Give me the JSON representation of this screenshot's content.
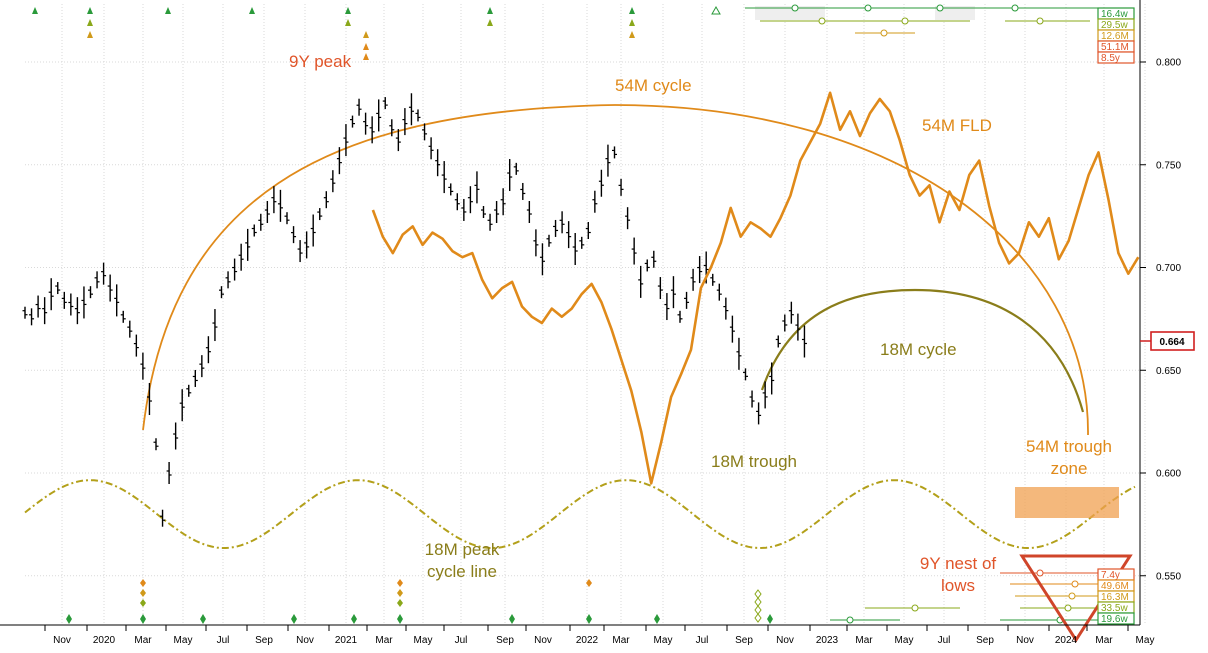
{
  "chart_data": {
    "type": "line",
    "title": "",
    "xlabel": "",
    "ylabel": "",
    "ylim": [
      0.52,
      0.825
    ],
    "x_ticks": [
      "Nov",
      "2020",
      "Mar",
      "May",
      "Jul",
      "Sep",
      "Nov",
      "2021",
      "Mar",
      "May",
      "Jul",
      "Sep",
      "Nov",
      "2022",
      "Mar",
      "May",
      "Jul",
      "Sep",
      "Nov",
      "2023",
      "Mar",
      "May",
      "Jul",
      "Sep",
      "Nov",
      "2024",
      "Mar",
      "May"
    ],
    "y_ticks": [
      "0.550",
      "0.600",
      "0.650",
      "0.700",
      "0.750",
      "0.800"
    ],
    "current_price": "0.664",
    "price_bars": [
      {
        "t": 0,
        "v": 0.678
      },
      {
        "t": 1,
        "v": 0.676
      },
      {
        "t": 2,
        "v": 0.681
      },
      {
        "t": 3,
        "v": 0.679
      },
      {
        "t": 4,
        "v": 0.687
      },
      {
        "t": 5,
        "v": 0.69
      },
      {
        "t": 6,
        "v": 0.684
      },
      {
        "t": 7,
        "v": 0.682
      },
      {
        "t": 8,
        "v": 0.679
      },
      {
        "t": 9,
        "v": 0.683
      },
      {
        "t": 10,
        "v": 0.688
      },
      {
        "t": 11,
        "v": 0.694
      },
      {
        "t": 12,
        "v": 0.697
      },
      {
        "t": 13,
        "v": 0.69
      },
      {
        "t": 14,
        "v": 0.684
      },
      {
        "t": 15,
        "v": 0.676
      },
      {
        "t": 16,
        "v": 0.67
      },
      {
        "t": 17,
        "v": 0.662
      },
      {
        "t": 18,
        "v": 0.652
      },
      {
        "t": 19,
        "v": 0.636
      },
      {
        "t": 20,
        "v": 0.614
      },
      {
        "t": 21,
        "v": 0.578
      },
      {
        "t": 22,
        "v": 0.6
      },
      {
        "t": 23,
        "v": 0.618
      },
      {
        "t": 24,
        "v": 0.633
      },
      {
        "t": 25,
        "v": 0.64
      },
      {
        "t": 26,
        "v": 0.646
      },
      {
        "t": 27,
        "v": 0.652
      },
      {
        "t": 28,
        "v": 0.66
      },
      {
        "t": 29,
        "v": 0.672
      },
      {
        "t": 30,
        "v": 0.688
      },
      {
        "t": 31,
        "v": 0.694
      },
      {
        "t": 32,
        "v": 0.699
      },
      {
        "t": 33,
        "v": 0.705
      },
      {
        "t": 34,
        "v": 0.711
      },
      {
        "t": 35,
        "v": 0.718
      },
      {
        "t": 36,
        "v": 0.722
      },
      {
        "t": 37,
        "v": 0.727
      },
      {
        "t": 38,
        "v": 0.733
      },
      {
        "t": 39,
        "v": 0.73
      },
      {
        "t": 40,
        "v": 0.724
      },
      {
        "t": 41,
        "v": 0.716
      },
      {
        "t": 42,
        "v": 0.708
      },
      {
        "t": 43,
        "v": 0.711
      },
      {
        "t": 44,
        "v": 0.718
      },
      {
        "t": 45,
        "v": 0.726
      },
      {
        "t": 46,
        "v": 0.733
      },
      {
        "t": 47,
        "v": 0.742
      },
      {
        "t": 48,
        "v": 0.752
      },
      {
        "t": 49,
        "v": 0.762
      },
      {
        "t": 50,
        "v": 0.771
      },
      {
        "t": 51,
        "v": 0.778
      },
      {
        "t": 52,
        "v": 0.77
      },
      {
        "t": 53,
        "v": 0.767
      },
      {
        "t": 54,
        "v": 0.774
      },
      {
        "t": 55,
        "v": 0.78
      },
      {
        "t": 56,
        "v": 0.768
      },
      {
        "t": 57,
        "v": 0.762
      },
      {
        "t": 58,
        "v": 0.771
      },
      {
        "t": 59,
        "v": 0.777
      },
      {
        "t": 60,
        "v": 0.774
      },
      {
        "t": 61,
        "v": 0.766
      },
      {
        "t": 62,
        "v": 0.758
      },
      {
        "t": 63,
        "v": 0.751
      },
      {
        "t": 64,
        "v": 0.744
      },
      {
        "t": 65,
        "v": 0.738
      },
      {
        "t": 66,
        "v": 0.732
      },
      {
        "t": 67,
        "v": 0.728
      },
      {
        "t": 68,
        "v": 0.733
      },
      {
        "t": 69,
        "v": 0.739
      },
      {
        "t": 70,
        "v": 0.727
      },
      {
        "t": 71,
        "v": 0.722
      },
      {
        "t": 72,
        "v": 0.727
      },
      {
        "t": 73,
        "v": 0.732
      },
      {
        "t": 74,
        "v": 0.745
      },
      {
        "t": 75,
        "v": 0.748
      },
      {
        "t": 76,
        "v": 0.737
      },
      {
        "t": 77,
        "v": 0.727
      },
      {
        "t": 78,
        "v": 0.712
      },
      {
        "t": 79,
        "v": 0.704
      },
      {
        "t": 80,
        "v": 0.713
      },
      {
        "t": 81,
        "v": 0.719
      },
      {
        "t": 82,
        "v": 0.722
      },
      {
        "t": 83,
        "v": 0.716
      },
      {
        "t": 84,
        "v": 0.709
      },
      {
        "t": 85,
        "v": 0.712
      },
      {
        "t": 86,
        "v": 0.718
      },
      {
        "t": 87,
        "v": 0.732
      },
      {
        "t": 88,
        "v": 0.741
      },
      {
        "t": 89,
        "v": 0.752
      },
      {
        "t": 90,
        "v": 0.756
      },
      {
        "t": 91,
        "v": 0.739
      },
      {
        "t": 92,
        "v": 0.724
      },
      {
        "t": 93,
        "v": 0.708
      },
      {
        "t": 94,
        "v": 0.693
      },
      {
        "t": 95,
        "v": 0.701
      },
      {
        "t": 96,
        "v": 0.704
      },
      {
        "t": 97,
        "v": 0.69
      },
      {
        "t": 98,
        "v": 0.681
      },
      {
        "t": 99,
        "v": 0.688
      },
      {
        "t": 100,
        "v": 0.676
      },
      {
        "t": 101,
        "v": 0.684
      },
      {
        "t": 102,
        "v": 0.694
      },
      {
        "t": 103,
        "v": 0.699
      },
      {
        "t": 104,
        "v": 0.7
      },
      {
        "t": 105,
        "v": 0.694
      },
      {
        "t": 106,
        "v": 0.688
      },
      {
        "t": 107,
        "v": 0.68
      },
      {
        "t": 108,
        "v": 0.67
      },
      {
        "t": 109,
        "v": 0.658
      },
      {
        "t": 110,
        "v": 0.648
      },
      {
        "t": 111,
        "v": 0.636
      },
      {
        "t": 112,
        "v": 0.629
      },
      {
        "t": 113,
        "v": 0.638
      },
      {
        "t": 114,
        "v": 0.646
      },
      {
        "t": 115,
        "v": 0.664
      },
      {
        "t": 116,
        "v": 0.673
      },
      {
        "t": 117,
        "v": 0.678
      },
      {
        "t": 118,
        "v": 0.671
      },
      {
        "t": 119,
        "v": 0.664
      }
    ],
    "series": [
      {
        "name": "54M FLD",
        "color": "#e08a1a",
        "points": [
          [
            70,
            0.728
          ],
          [
            72,
            0.715
          ],
          [
            74,
            0.707
          ],
          [
            76,
            0.716
          ],
          [
            78,
            0.72
          ],
          [
            80,
            0.711
          ],
          [
            82,
            0.717
          ],
          [
            84,
            0.714
          ],
          [
            86,
            0.708
          ],
          [
            88,
            0.705
          ],
          [
            90,
            0.707
          ],
          [
            92,
            0.694
          ],
          [
            94,
            0.685
          ],
          [
            96,
            0.69
          ],
          [
            98,
            0.693
          ],
          [
            100,
            0.681
          ],
          [
            102,
            0.676
          ],
          [
            104,
            0.673
          ],
          [
            106,
            0.68
          ],
          [
            108,
            0.676
          ],
          [
            110,
            0.68
          ],
          [
            112,
            0.687
          ],
          [
            114,
            0.692
          ],
          [
            116,
            0.683
          ],
          [
            118,
            0.67
          ],
          [
            120,
            0.655
          ],
          [
            122,
            0.64
          ],
          [
            124,
            0.62
          ],
          [
            126,
            0.595
          ],
          [
            128,
            0.615
          ],
          [
            130,
            0.637
          ],
          [
            132,
            0.648
          ],
          [
            134,
            0.66
          ],
          [
            136,
            0.69
          ],
          [
            138,
            0.7
          ],
          [
            140,
            0.712
          ],
          [
            142,
            0.729
          ],
          [
            144,
            0.715
          ],
          [
            146,
            0.722
          ],
          [
            148,
            0.719
          ],
          [
            150,
            0.715
          ],
          [
            152,
            0.724
          ],
          [
            154,
            0.735
          ],
          [
            156,
            0.752
          ],
          [
            158,
            0.761
          ],
          [
            160,
            0.77
          ],
          [
            162,
            0.785
          ],
          [
            164,
            0.767
          ],
          [
            166,
            0.776
          ],
          [
            168,
            0.764
          ],
          [
            170,
            0.775
          ],
          [
            172,
            0.782
          ],
          [
            174,
            0.776
          ],
          [
            176,
            0.762
          ],
          [
            178,
            0.745
          ],
          [
            180,
            0.735
          ],
          [
            182,
            0.74
          ],
          [
            184,
            0.722
          ],
          [
            186,
            0.737
          ],
          [
            188,
            0.728
          ],
          [
            190,
            0.745
          ],
          [
            192,
            0.752
          ],
          [
            194,
            0.73
          ],
          [
            196,
            0.712
          ],
          [
            198,
            0.702
          ],
          [
            200,
            0.707
          ],
          [
            202,
            0.722
          ],
          [
            204,
            0.715
          ],
          [
            206,
            0.724
          ],
          [
            208,
            0.704
          ],
          [
            210,
            0.713
          ],
          [
            212,
            0.729
          ],
          [
            214,
            0.745
          ],
          [
            216,
            0.756
          ],
          [
            218,
            0.733
          ],
          [
            220,
            0.707
          ],
          [
            222,
            0.697
          ],
          [
            224,
            0.705
          ]
        ]
      },
      {
        "name": "18M peak cycle line",
        "color": "#b3a01a",
        "style": "dash-dot"
      }
    ],
    "annotations": [
      {
        "text": "9Y peak",
        "color": "#e0552a"
      },
      {
        "text": "54M cycle",
        "color": "#e08a1a"
      },
      {
        "text": "54M FLD",
        "color": "#e08a1a"
      },
      {
        "text": "18M cycle",
        "color": "#8a7d1a"
      },
      {
        "text": "18M trough",
        "color": "#8a7d1a"
      },
      {
        "text": "54M trough",
        "color": "#e08a1a"
      },
      {
        "text": "zone",
        "color": "#e08a1a"
      },
      {
        "text": "18M peak",
        "color": "#8a7d1a"
      },
      {
        "text": "cycle line",
        "color": "#8a7d1a"
      },
      {
        "text": "9Y nest of",
        "color": "#e0552a"
      },
      {
        "text": "lows",
        "color": "#e0552a"
      }
    ],
    "top_badges": [
      {
        "text": "16.4w",
        "color": "#2a9a3a"
      },
      {
        "text": "29.5w",
        "color": "#8aa81a"
      },
      {
        "text": "12.6M",
        "color": "#d09a1a"
      },
      {
        "text": "51.1M",
        "color": "#e0552a"
      },
      {
        "text": "8.5y",
        "color": "#e0552a"
      }
    ],
    "bottom_badges": [
      {
        "text": "7.4y",
        "color": "#e0552a"
      },
      {
        "text": "49.6M",
        "color": "#e08a1a"
      },
      {
        "text": "16.3M",
        "color": "#d09a1a"
      },
      {
        "text": "33.5w",
        "color": "#8aa81a"
      },
      {
        "text": "19.6w",
        "color": "#2a9a3a"
      }
    ],
    "grid": true,
    "legend": "none"
  }
}
